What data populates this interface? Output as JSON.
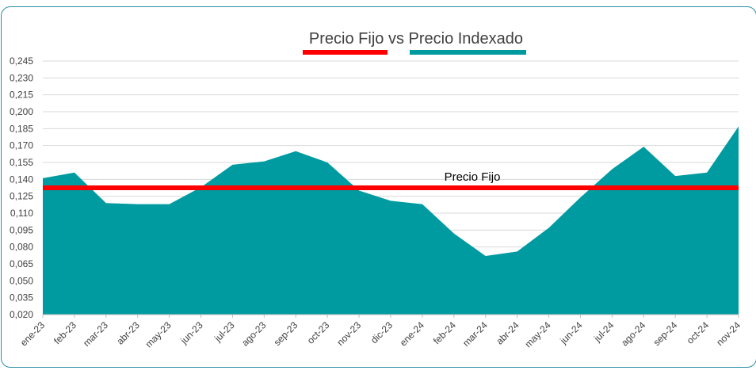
{
  "chart_data": {
    "type": "area",
    "title": "Precio Fijo vs Precio Indexado",
    "xlabel": "",
    "ylabel": "",
    "categories": [
      "ene-23",
      "feb-23",
      "mar-23",
      "abr-23",
      "may-23",
      "jun-23",
      "jul-23",
      "ago-23",
      "sep-23",
      "oct-23",
      "nov-23",
      "dic-23",
      "ene-24",
      "feb-24",
      "mar-24",
      "abr-24",
      "may-24",
      "jun-24",
      "jul-24",
      "ago-24",
      "sep-24",
      "oct-24",
      "nov-24"
    ],
    "ylim": [
      0.02,
      0.245
    ],
    "yticks": [
      "0,020",
      "0,035",
      "0,050",
      "0,065",
      "0,080",
      "0,095",
      "0,110",
      "0,125",
      "0,140",
      "0,155",
      "0,170",
      "0,185",
      "0,200",
      "0,215",
      "0,230",
      "0,245"
    ],
    "grid": true,
    "legend_position": "top",
    "series": [
      {
        "type": "area",
        "color": "#009ba1",
        "values": [
          0.141,
          0.146,
          0.119,
          0.118,
          0.118,
          0.133,
          0.153,
          0.156,
          0.165,
          0.155,
          0.13,
          0.121,
          0.118,
          0.092,
          0.072,
          0.076,
          0.097,
          0.124,
          0.149,
          0.169,
          0.143,
          0.146,
          0.187
        ]
      },
      {
        "type": "line",
        "color": "#ff0000",
        "value": 0.1325
      }
    ],
    "annotations": [
      {
        "text": "Precio Fijo"
      }
    ]
  }
}
